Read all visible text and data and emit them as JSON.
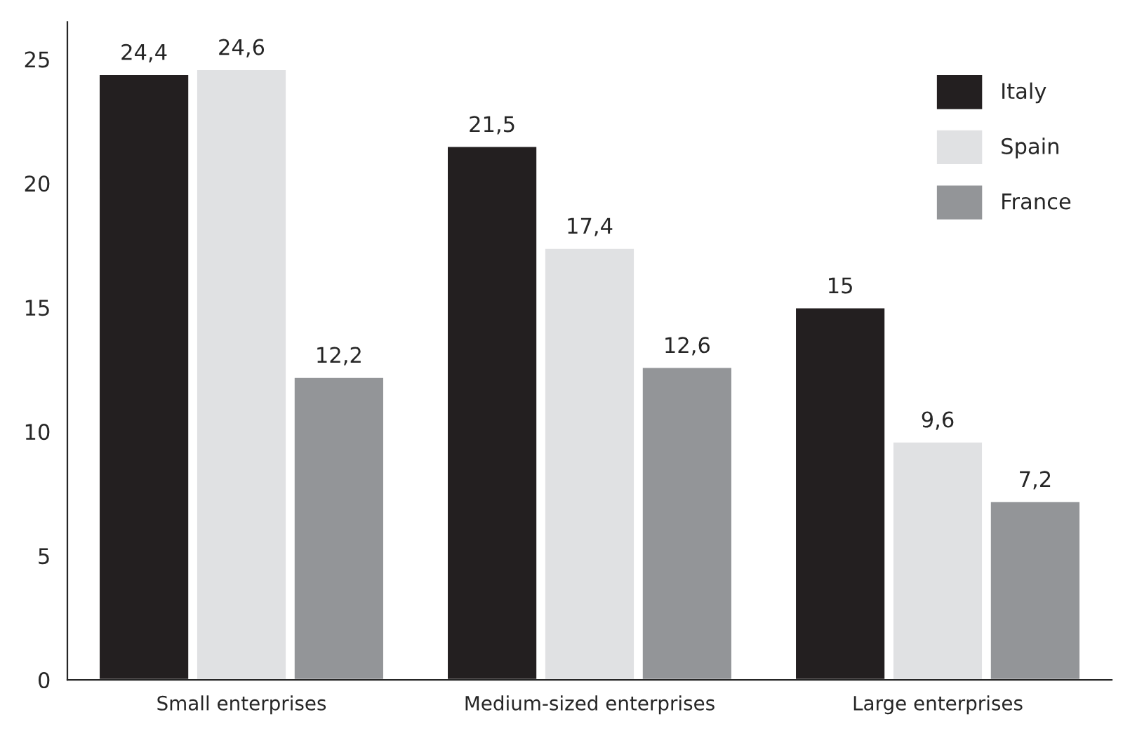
{
  "chart_data": {
    "type": "bar",
    "categories": [
      "Small enterprises",
      "Medium-sized enterprises",
      "Large enterprises"
    ],
    "series": [
      {
        "name": "Italy",
        "color": "#231f20",
        "values": [
          24.4,
          21.5,
          15
        ],
        "value_labels": [
          "24,4",
          "21,5",
          "15"
        ]
      },
      {
        "name": "Spain",
        "color": "#e0e1e3",
        "values": [
          24.6,
          17.4,
          9.6
        ],
        "value_labels": [
          "24,6",
          "17,4",
          "9,6"
        ]
      },
      {
        "name": "France",
        "color": "#939598",
        "values": [
          12.2,
          12.6,
          7.2
        ],
        "value_labels": [
          "12,2",
          "12,6",
          "7,2"
        ]
      }
    ],
    "ylim": [
      0,
      26.5
    ],
    "yticks": [
      0,
      5,
      10,
      15,
      20,
      25
    ],
    "grid": false,
    "legend": "top right"
  }
}
